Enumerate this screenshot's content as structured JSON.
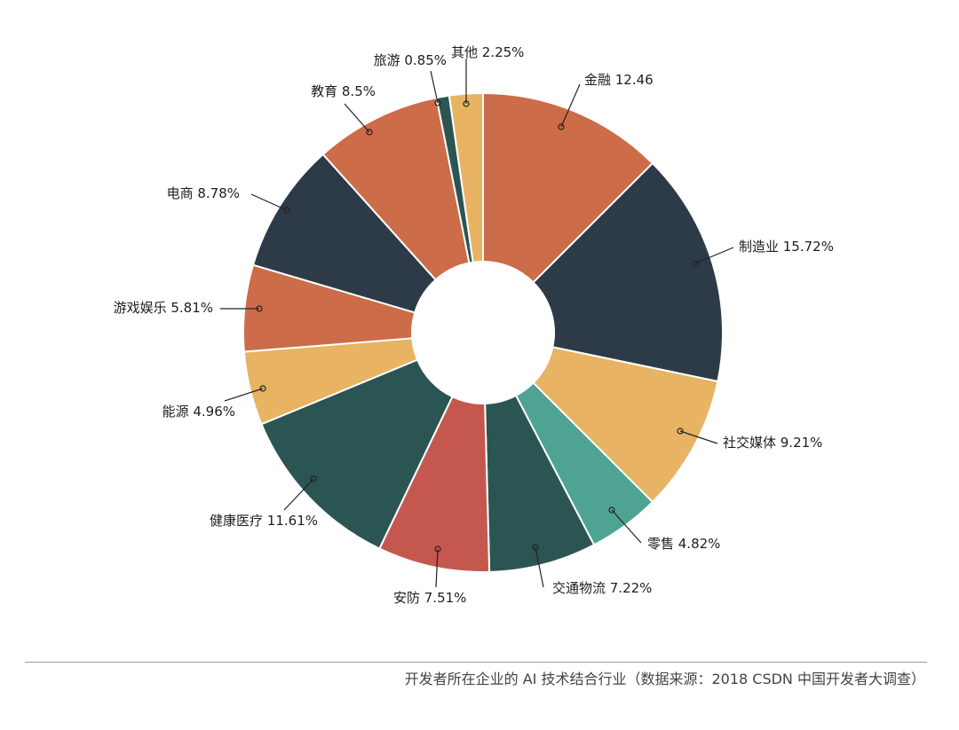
{
  "caption": "开发者所在企业的 AI 技术结合行业（数据来源：2018 CSDN 中国开发者大调查）",
  "chart_data": {
    "type": "pie",
    "variant": "donut",
    "start_angle_deg": 0,
    "direction": "clockwise",
    "slices": [
      {
        "label": "金融",
        "display": "12.46",
        "value": 12.46,
        "color": "#cc6c48"
      },
      {
        "label": "制造业",
        "display": "15.72%",
        "value": 15.72,
        "color": "#2c3b47"
      },
      {
        "label": "社交媒体",
        "display": "9.21%",
        "value": 9.21,
        "color": "#e8b362"
      },
      {
        "label": "零售",
        "display": "4.82%",
        "value": 4.82,
        "color": "#4ea393"
      },
      {
        "label": "交通物流",
        "display": "7.22%",
        "value": 7.22,
        "color": "#2b5552"
      },
      {
        "label": "安防",
        "display": "7.51%",
        "value": 7.51,
        "color": "#c4584f"
      },
      {
        "label": "健康医疗",
        "display": "11.61%",
        "value": 11.61,
        "color": "#2b5552"
      },
      {
        "label": "能源",
        "display": "4.96%",
        "value": 4.96,
        "color": "#e8b362"
      },
      {
        "label": "游戏娱乐",
        "display": "5.81%",
        "value": 5.81,
        "color": "#cc6c48"
      },
      {
        "label": "电商",
        "display": "8.78%",
        "value": 8.78,
        "color": "#2c3b47"
      },
      {
        "label": "教育",
        "display": "8.5%",
        "value": 8.5,
        "color": "#cc6c48"
      },
      {
        "label": "旅游",
        "display": "0.85%",
        "value": 0.85,
        "color": "#2b5552"
      },
      {
        "label": "其他",
        "display": "2.25%",
        "value": 2.25,
        "color": "#e8b362"
      }
    ]
  }
}
